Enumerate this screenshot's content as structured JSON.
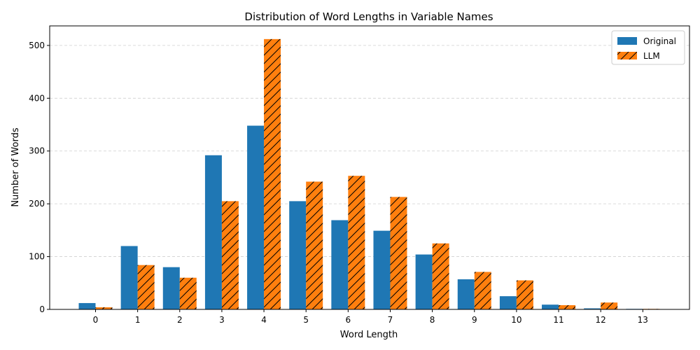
{
  "chart_data": {
    "type": "bar",
    "title": "Distribution of Word Lengths in Variable Names",
    "xlabel": "Word Length",
    "ylabel": "Number of Words",
    "categories": [
      "0",
      "1",
      "2",
      "3",
      "4",
      "5",
      "6",
      "7",
      "8",
      "9",
      "10",
      "11",
      "12",
      "13"
    ],
    "yticks": [
      0,
      100,
      200,
      300,
      400,
      500
    ],
    "ylim": [
      0,
      537
    ],
    "grid": "y-dashed",
    "legend_position": "top-right",
    "series": [
      {
        "name": "Original",
        "color": "#1f77b4",
        "pattern": "solid",
        "values": [
          12,
          120,
          80,
          292,
          348,
          205,
          169,
          149,
          104,
          57,
          25,
          9,
          2,
          1
        ]
      },
      {
        "name": "LLM",
        "color": "#ff7f0e",
        "pattern": "hatch",
        "values": [
          4,
          84,
          60,
          205,
          512,
          242,
          253,
          213,
          125,
          71,
          55,
          8,
          13,
          1
        ]
      }
    ]
  }
}
